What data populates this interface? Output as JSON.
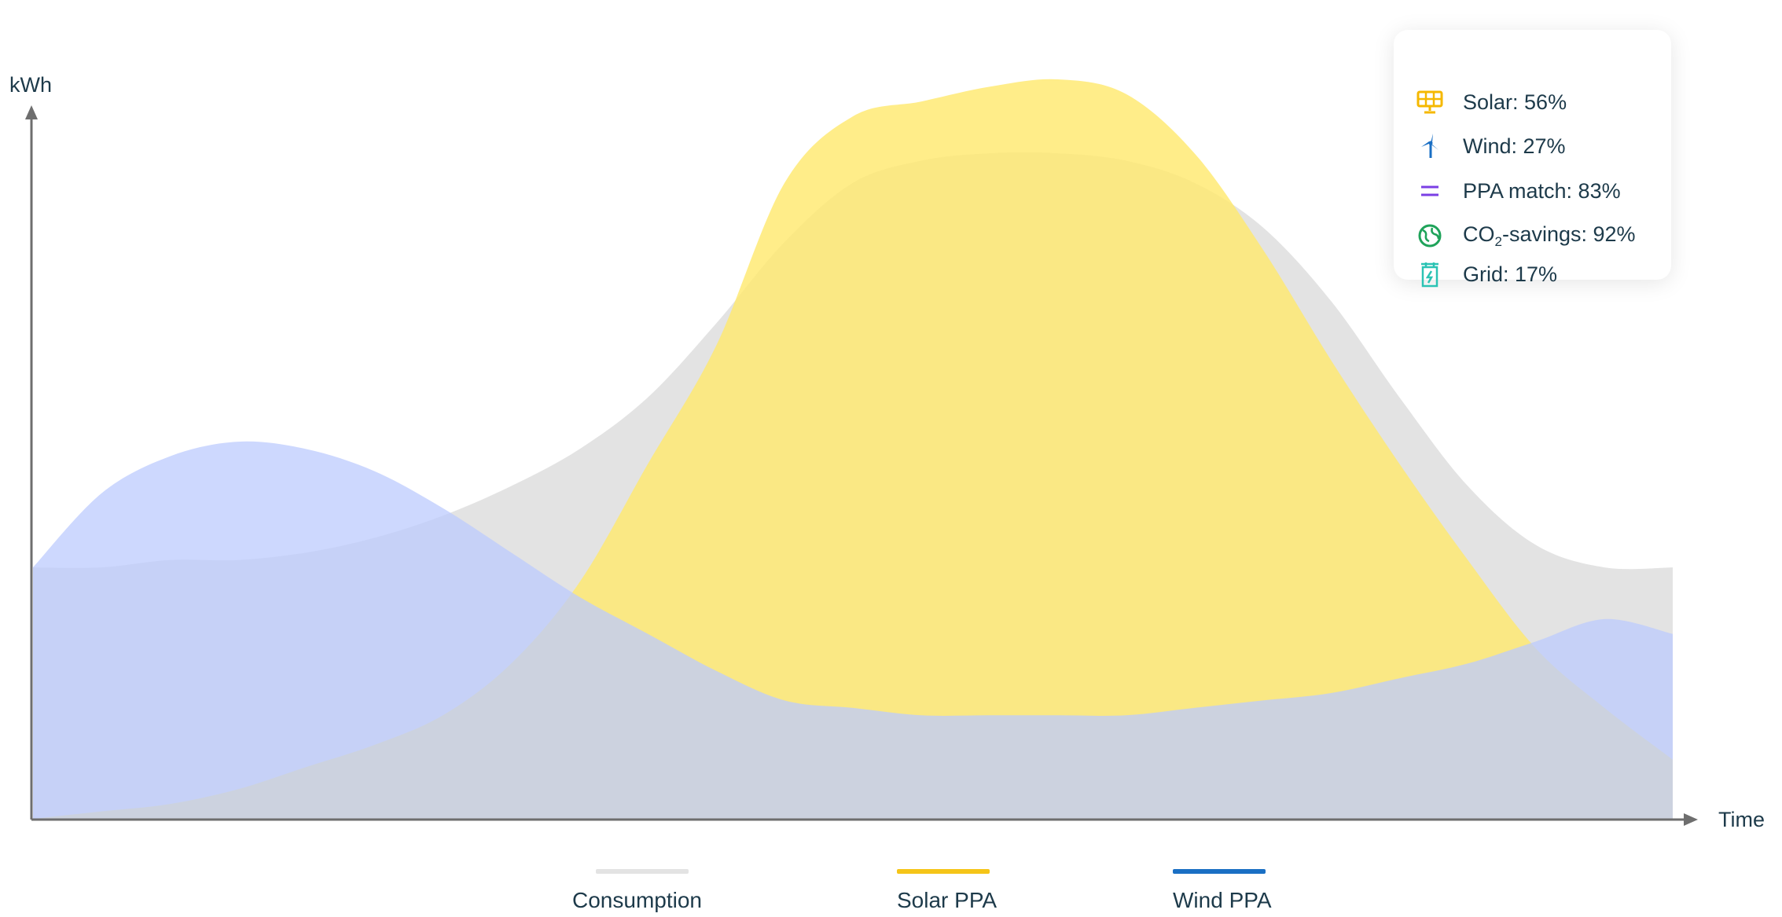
{
  "chart_data": {
    "type": "area",
    "xlabel": "Time",
    "ylabel": "kWh",
    "x": [
      0,
      1,
      2,
      3,
      4,
      5,
      6,
      7,
      8,
      9,
      10,
      11,
      12,
      13,
      14,
      15,
      16,
      17,
      18,
      19,
      20,
      21,
      22,
      23,
      24
    ],
    "series": [
      {
        "name": "Consumption",
        "color": "#e3e3e3",
        "values": [
          0.34,
          0.34,
          0.35,
          0.35,
          0.36,
          0.38,
          0.41,
          0.45,
          0.5,
          0.57,
          0.67,
          0.78,
          0.86,
          0.89,
          0.9,
          0.9,
          0.89,
          0.86,
          0.8,
          0.7,
          0.57,
          0.45,
          0.37,
          0.34,
          0.34
        ]
      },
      {
        "name": "Solar PPA",
        "color": "#ffe96b",
        "values": [
          0.0,
          0.01,
          0.02,
          0.04,
          0.07,
          0.1,
          0.14,
          0.21,
          0.32,
          0.48,
          0.64,
          0.86,
          0.95,
          0.97,
          0.99,
          1.0,
          0.98,
          0.9,
          0.77,
          0.62,
          0.48,
          0.35,
          0.23,
          0.15,
          0.08
        ]
      },
      {
        "name": "Wind PPA",
        "color": "#bccbfd",
        "values": [
          0.34,
          0.44,
          0.49,
          0.51,
          0.5,
          0.47,
          0.42,
          0.36,
          0.3,
          0.25,
          0.2,
          0.16,
          0.15,
          0.14,
          0.14,
          0.14,
          0.14,
          0.15,
          0.16,
          0.17,
          0.19,
          0.21,
          0.24,
          0.27,
          0.25
        ]
      }
    ],
    "ylim": [
      0,
      1
    ],
    "grid": false,
    "legend": "bottom"
  },
  "stats": {
    "solar": "Solar: 56%",
    "wind": "Wind: 27%",
    "ppa": "PPA match: 83%",
    "co2_prefix": "CO",
    "co2_sub": "2",
    "co2_suffix": "-savings: 92%",
    "grid": "Grid: 17%"
  },
  "legend": {
    "consumption": "Consumption",
    "solar": "Solar PPA",
    "wind": "Wind PPA"
  },
  "colors": {
    "solar_icon": "#f5b800",
    "wind_icon": "#1a6fc4",
    "ppa_icon": "#7b3fe4",
    "co2_icon": "#1fa35a",
    "grid_icon": "#2bc3b4",
    "consumption_line": "#e3e3e3",
    "solar_line": "#f5c518",
    "wind_line": "#1a6fc4",
    "axis": "#6e6e6e"
  },
  "icons": {
    "solar": "solar-panel-icon",
    "wind": "wind-turbine-icon",
    "ppa": "equals-icon",
    "co2": "globe-leaf-icon",
    "grid": "grid-tower-icon"
  }
}
